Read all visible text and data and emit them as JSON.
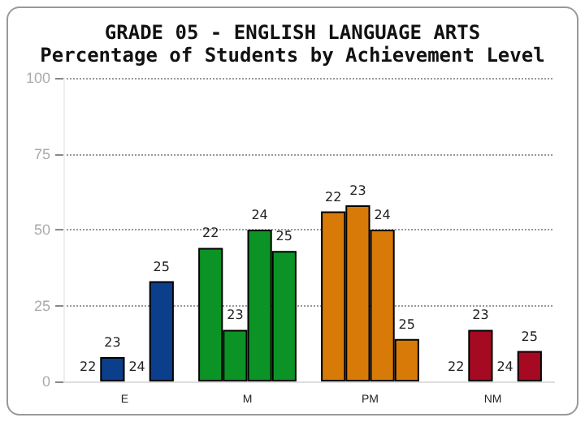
{
  "chart_data": {
    "type": "bar",
    "title": "GRADE 05 - ENGLISH LANGUAGE ARTS",
    "subtitle": "Percentage of Students by Achievement Level",
    "categories": [
      "E",
      "M",
      "PM",
      "NM"
    ],
    "series": [
      {
        "name": "22",
        "colors": [
          "#0b3f8c",
          "#0b9325",
          "#d87a07",
          "#a60a23"
        ],
        "values": [
          0,
          44,
          56,
          0
        ]
      },
      {
        "name": "23",
        "colors": [
          "#0b3f8c",
          "#0b9325",
          "#d87a07",
          "#a60a23"
        ],
        "values": [
          8,
          17,
          58,
          17
        ]
      },
      {
        "name": "24",
        "colors": [
          "#0b3f8c",
          "#0b9325",
          "#d87a07",
          "#a60a23"
        ],
        "values": [
          0,
          50,
          50,
          0
        ]
      },
      {
        "name": "25",
        "colors": [
          "#0b3f8c",
          "#0b9325",
          "#d87a07",
          "#a60a23"
        ],
        "values": [
          33,
          43,
          14,
          10
        ]
      }
    ],
    "ylim": [
      0,
      100
    ],
    "yticks": [
      0,
      25,
      50,
      75,
      100
    ],
    "grid": "y",
    "legend": false
  }
}
